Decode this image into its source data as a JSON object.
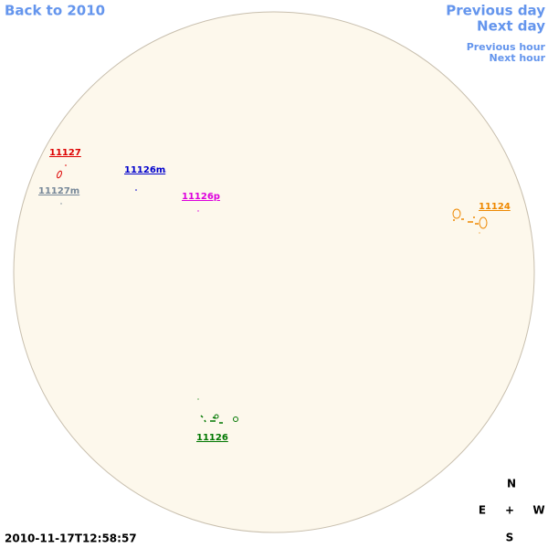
{
  "nav": {
    "back": "Back to 2010",
    "previous_day": "Previous day",
    "next_day": "Next day",
    "previous_hour": "Previous hour",
    "next_hour": "Next hour"
  },
  "regions": [
    {
      "label": "11127",
      "color": "#dd0000"
    },
    {
      "label": "11127m",
      "color": "#778899"
    },
    {
      "label": "11126m",
      "color": "#0000cc"
    },
    {
      "label": "11126p",
      "color": "#dd00dd"
    },
    {
      "label": "11124",
      "color": "#ee8800"
    },
    {
      "label": "11126",
      "color": "#007700"
    }
  ],
  "compass": {
    "north": "N",
    "east": "E",
    "center": "+",
    "west": "W",
    "south": "S"
  },
  "timestamp": "2010-11-17T12:58:57"
}
